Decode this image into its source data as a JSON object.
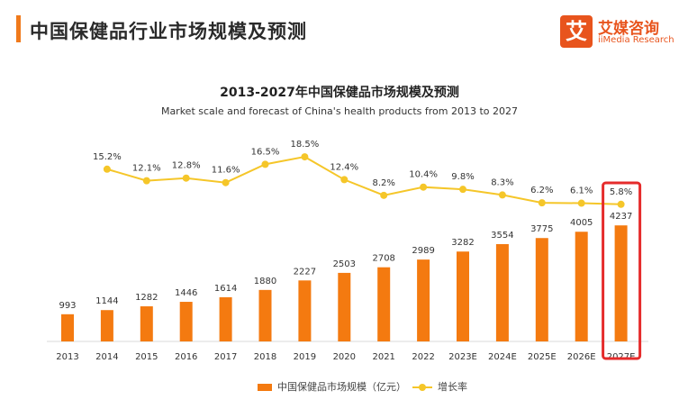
{
  "header": {
    "title": "中国保健品行业市场规模及预测",
    "logo_mark": "艾",
    "logo_cn": "艾媒咨询",
    "logo_en": "iiMedia Research"
  },
  "colors": {
    "accent": "#f07a1c",
    "bar": "#f47a10",
    "line": "#f5c629",
    "highlight_box": "#e52b2b"
  },
  "chart_data": {
    "type": "bar",
    "title": "2013-2027年中国保健品市场规模及预测",
    "subtitle": "Market scale and forecast of China's health products from 2013 to 2027",
    "categories": [
      "2013",
      "2014",
      "2015",
      "2016",
      "2017",
      "2018",
      "2019",
      "2020",
      "2021",
      "2022",
      "2023E",
      "2024E",
      "2025E",
      "2026E",
      "2027E"
    ],
    "series": [
      {
        "name": "中国保健品市场规模（亿元）",
        "type": "bar",
        "values": [
          993,
          1144,
          1282,
          1446,
          1614,
          1880,
          2227,
          2503,
          2708,
          2989,
          3282,
          3554,
          3775,
          4005,
          4237
        ],
        "labels": [
          "993",
          "1144",
          "1282",
          "1446",
          "1614",
          "1880",
          "2227",
          "2503",
          "2708",
          "2989",
          "3282",
          "3554",
          "3775",
          "4005",
          "4237"
        ]
      },
      {
        "name": "增长率",
        "type": "line",
        "values": [
          15.2,
          12.1,
          12.8,
          11.6,
          16.5,
          18.5,
          12.4,
          8.2,
          10.4,
          9.8,
          8.3,
          6.2,
          6.1,
          5.8
        ],
        "x": [
          "2014",
          "2015",
          "2016",
          "2017",
          "2018",
          "2019",
          "2020",
          "2021",
          "2022",
          "2023E",
          "2024E",
          "2025E",
          "2026E",
          "2027E"
        ],
        "labels": [
          "15.2%",
          "12.1%",
          "12.8%",
          "11.6%",
          "16.5%",
          "18.5%",
          "12.4%",
          "8.2%",
          "10.4%",
          "9.8%",
          "8.3%",
          "6.2%",
          "6.1%",
          "5.8%"
        ]
      }
    ],
    "highlight_category": "2027E",
    "legend": "bottom-center",
    "grid": false
  }
}
